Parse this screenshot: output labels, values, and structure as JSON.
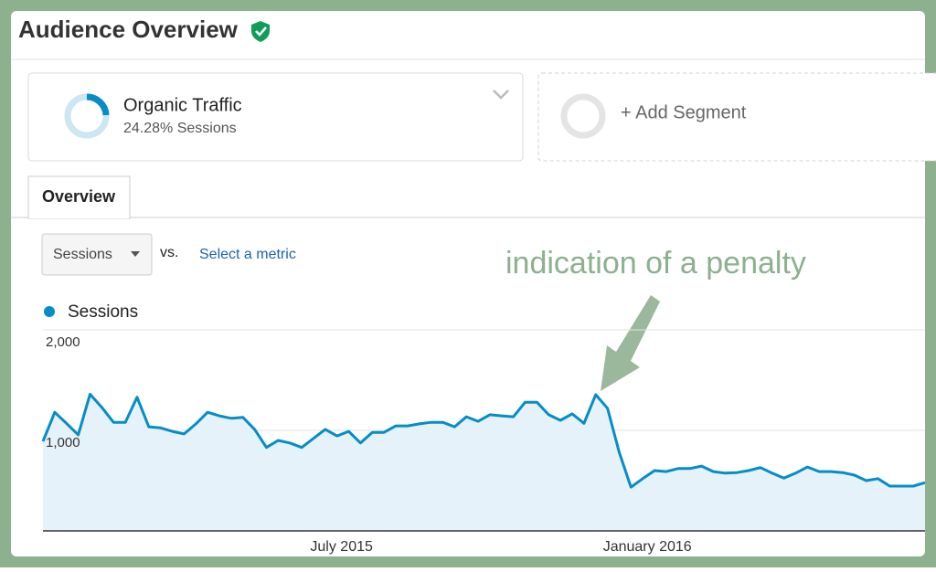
{
  "header": {
    "title": "Audience Overview"
  },
  "segments": {
    "active": {
      "name": "Organic Traffic",
      "detail": "24.28% Sessions"
    },
    "add": "+ Add Segment"
  },
  "tabs": [
    "Overview"
  ],
  "controls": {
    "metric": "Sessions",
    "versus": "vs.",
    "select": "Select a metric"
  },
  "chart_data": {
    "type": "line",
    "annotation": "indication of a penalty",
    "categories": [
      null,
      null,
      null,
      null,
      null,
      null,
      null,
      null,
      null,
      null,
      null,
      null,
      null,
      null,
      null,
      null,
      null,
      null,
      null,
      null,
      null,
      null,
      null,
      null,
      null,
      "July 2015",
      null,
      null,
      null,
      null,
      null,
      null,
      null,
      null,
      null,
      null,
      null,
      null,
      null,
      null,
      null,
      null,
      null,
      null,
      null,
      null,
      null,
      null,
      null,
      null,
      null,
      "January 2016",
      null,
      null,
      null,
      null,
      null,
      null,
      null,
      null,
      null,
      null,
      null,
      null,
      null,
      null,
      null,
      null,
      null,
      null,
      null,
      null,
      null,
      null,
      null,
      null
    ],
    "series": [
      {
        "name": "Sessions",
        "color": "#058dc7",
        "area_color": "#e6f2f9",
        "values": [
          890,
          1180,
          1070,
          955,
          1360,
          1230,
          1080,
          1080,
          1330,
          1035,
          1025,
          990,
          965,
          1065,
          1180,
          1145,
          1120,
          1130,
          1010,
          830,
          900,
          875,
          830,
          920,
          1010,
          945,
          990,
          875,
          980,
          980,
          1045,
          1045,
          1065,
          1080,
          1080,
          1035,
          1135,
          1090,
          1155,
          1145,
          1135,
          1280,
          1280,
          1155,
          1100,
          1165,
          1070,
          1355,
          1220,
          780,
          435,
          520,
          600,
          590,
          620,
          620,
          645,
          590,
          575,
          580,
          600,
          630,
          575,
          525,
          575,
          635,
          590,
          590,
          580,
          555,
          500,
          520,
          445,
          445,
          445,
          480
        ]
      }
    ],
    "ylim": [
      0,
      2000
    ],
    "yticks": [
      {
        "value": 1000,
        "label": "1,000"
      },
      {
        "value": 2000,
        "label": "2,000"
      }
    ],
    "grid": true
  }
}
